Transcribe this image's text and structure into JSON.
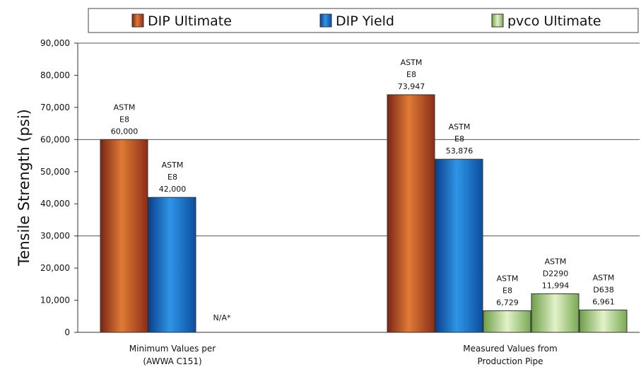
{
  "chart_data": {
    "type": "bar",
    "ylabel": "Tensile Strength (psi)",
    "ylim": [
      0,
      90000
    ],
    "yticks": [
      "0",
      "10,000",
      "20,000",
      "30,000",
      "40,000",
      "50,000",
      "60,000",
      "70,000",
      "80,000",
      "90,000"
    ],
    "grid": "horizontal",
    "legend_position": "top",
    "colors": {
      "DIP Ultimate": "#c45a2e",
      "DIP Yield": "#1a73c8",
      "pvco Ultimate": "#a9cf7e"
    },
    "legend": [
      "DIP Ultimate",
      "DIP Yield",
      "pvco Ultimate"
    ],
    "categories": [
      [
        "Minimum Values per",
        "(AWWA C151)"
      ],
      [
        "Measured Values from",
        "Production Pipe"
      ]
    ],
    "bars": [
      {
        "group": 0,
        "series": "DIP Ultimate",
        "value": 60000,
        "label": [
          "ASTM",
          "E8",
          "60,000"
        ]
      },
      {
        "group": 0,
        "series": "DIP Yield",
        "value": 42000,
        "label": [
          "ASTM",
          "E8",
          "42,000"
        ]
      },
      {
        "group": 1,
        "series": "DIP Ultimate",
        "value": 73947,
        "label": [
          "ASTM",
          "E8",
          "73,947"
        ]
      },
      {
        "group": 1,
        "series": "DIP Yield",
        "value": 53876,
        "label": [
          "ASTM",
          "E8",
          "53,876"
        ]
      },
      {
        "group": 1,
        "series": "pvco Ultimate",
        "value": 6729,
        "label": [
          "ASTM",
          "E8",
          "6,729"
        ]
      },
      {
        "group": 1,
        "series": "pvco Ultimate",
        "value": 11994,
        "label": [
          "ASTM",
          "D2290",
          "11,994"
        ]
      },
      {
        "group": 1,
        "series": "pvco Ultimate",
        "value": 6961,
        "label": [
          "ASTM",
          "D638",
          "6,961"
        ]
      }
    ],
    "annotations": [
      {
        "group": 0,
        "text": "N/A*"
      }
    ]
  }
}
